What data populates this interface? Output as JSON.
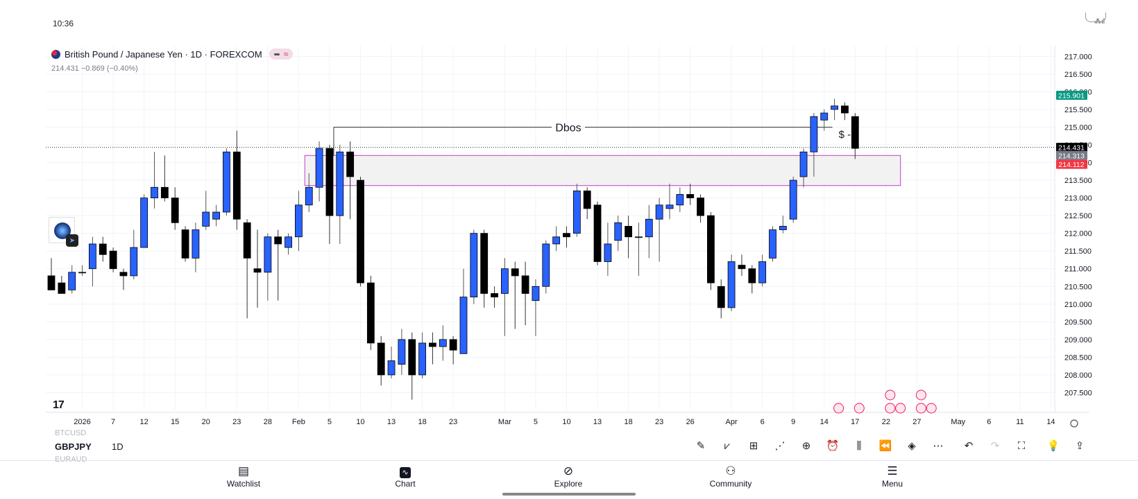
{
  "status": {
    "time": "10:36",
    "signal": "⁂ıl"
  },
  "legend": {
    "title": "British Pound / Japanese Yen · 1D · FOREXCOM",
    "price_line": "214.431  −0.869 (−0.40%)"
  },
  "colors": {
    "up_candle": "#2962ff",
    "down_candle": "#000000",
    "zone_border": "#c43ccf",
    "zone_fill": "#f2f2f2",
    "badge_green": "#089981",
    "badge_black": "#000000",
    "badge_gray": "#787b86",
    "badge_red": "#f23645"
  },
  "chart_data": {
    "type": "candlestick",
    "symbol": "GBPJPY",
    "interval": "1D",
    "ylim": [
      207.0,
      217.3
    ],
    "y_ticks": [
      "217.000",
      "216.500",
      "216.000",
      "215.500",
      "215.000",
      "214.500",
      "214.000",
      "213.500",
      "213.000",
      "212.500",
      "212.000",
      "211.500",
      "211.000",
      "210.500",
      "210.000",
      "209.500",
      "209.000",
      "208.500",
      "208.000",
      "207.500"
    ],
    "x_ticks": [
      {
        "i": 3,
        "label": "2026"
      },
      {
        "i": 6,
        "label": "7"
      },
      {
        "i": 9,
        "label": "12"
      },
      {
        "i": 12,
        "label": "15"
      },
      {
        "i": 15,
        "label": "20"
      },
      {
        "i": 18,
        "label": "23"
      },
      {
        "i": 21,
        "label": "28"
      },
      {
        "i": 24,
        "label": "Feb"
      },
      {
        "i": 27,
        "label": "5"
      },
      {
        "i": 30,
        "label": "10"
      },
      {
        "i": 33,
        "label": "13"
      },
      {
        "i": 36,
        "label": "18"
      },
      {
        "i": 39,
        "label": "23"
      },
      {
        "i": 44,
        "label": "Mar"
      },
      {
        "i": 47,
        "label": "5"
      },
      {
        "i": 50,
        "label": "10"
      },
      {
        "i": 53,
        "label": "13"
      },
      {
        "i": 56,
        "label": "18"
      },
      {
        "i": 59,
        "label": "23"
      },
      {
        "i": 62,
        "label": "26"
      },
      {
        "i": 66,
        "label": "Apr"
      },
      {
        "i": 69,
        "label": "6"
      },
      {
        "i": 72,
        "label": "9"
      },
      {
        "i": 75,
        "label": "14"
      },
      {
        "i": 78,
        "label": "17"
      },
      {
        "i": 81,
        "label": "22"
      },
      {
        "i": 84,
        "label": "27"
      },
      {
        "i": 88,
        "label": "May"
      },
      {
        "i": 91,
        "label": "6"
      },
      {
        "i": 94,
        "label": "11"
      },
      {
        "i": 97,
        "label": "14"
      }
    ],
    "candles": [
      [
        210.8,
        210.4,
        211.3,
        210.5
      ],
      [
        210.6,
        210.3,
        210.8,
        210.5
      ],
      [
        210.4,
        210.9,
        211.1,
        210.3
      ],
      [
        210.9,
        210.9,
        211.1,
        210.8
      ],
      [
        211.0,
        211.7,
        211.9,
        210.5
      ],
      [
        211.7,
        211.4,
        211.9,
        211.2
      ],
      [
        211.5,
        211.0,
        211.6,
        210.9
      ],
      [
        210.9,
        210.8,
        211.0,
        210.4
      ],
      [
        210.8,
        211.6,
        212.1,
        210.7
      ],
      [
        211.6,
        213.0,
        213.1,
        211.6
      ],
      [
        213.0,
        213.3,
        214.3,
        212.7
      ],
      [
        213.3,
        213.0,
        214.2,
        212.9
      ],
      [
        213.0,
        212.3,
        213.3,
        212.1
      ],
      [
        212.1,
        211.3,
        212.2,
        211.2
      ],
      [
        211.3,
        212.1,
        212.3,
        210.9
      ],
      [
        212.2,
        212.6,
        213.2,
        212.1
      ],
      [
        212.4,
        212.6,
        212.8,
        212.2
      ],
      [
        212.6,
        214.3,
        214.4,
        212.5
      ],
      [
        214.3,
        212.4,
        214.9,
        212.1
      ],
      [
        212.3,
        211.3,
        212.4,
        209.6
      ],
      [
        211.0,
        210.9,
        212.1,
        209.9
      ],
      [
        210.9,
        211.9,
        212.0,
        210.1
      ],
      [
        211.9,
        211.7,
        212.1,
        210.1
      ],
      [
        211.6,
        211.9,
        212.0,
        211.4
      ],
      [
        211.9,
        212.8,
        213.2,
        211.5
      ],
      [
        212.8,
        213.3,
        213.7,
        212.6
      ],
      [
        213.3,
        214.4,
        214.6,
        212.9
      ],
      [
        214.4,
        212.5,
        214.5,
        211.7
      ],
      [
        212.5,
        214.3,
        214.5,
        211.7
      ],
      [
        214.3,
        213.6,
        214.6,
        212.4
      ],
      [
        213.5,
        210.6,
        213.6,
        210.5
      ],
      [
        210.6,
        208.9,
        210.8,
        208.7
      ],
      [
        208.9,
        208.0,
        209.1,
        207.7
      ],
      [
        208.0,
        208.4,
        208.8,
        207.9
      ],
      [
        208.3,
        209.0,
        209.3,
        208.0
      ],
      [
        209.0,
        208.0,
        209.2,
        207.3
      ],
      [
        208.0,
        208.9,
        209.2,
        207.9
      ],
      [
        208.9,
        208.8,
        209.2,
        208.3
      ],
      [
        208.8,
        209.0,
        209.4,
        208.4
      ],
      [
        209.0,
        208.7,
        209.1,
        208.3
      ],
      [
        208.6,
        210.2,
        211.0,
        208.6
      ],
      [
        210.2,
        212.0,
        212.1,
        210.0
      ],
      [
        212.0,
        210.3,
        212.1,
        209.9
      ],
      [
        210.3,
        210.2,
        210.5,
        209.9
      ],
      [
        210.3,
        211.0,
        211.3,
        209.1
      ],
      [
        211.0,
        210.8,
        211.2,
        209.3
      ],
      [
        210.8,
        210.3,
        211.2,
        209.4
      ],
      [
        210.1,
        210.5,
        210.7,
        209.1
      ],
      [
        210.5,
        211.7,
        211.8,
        210.3
      ],
      [
        211.7,
        211.9,
        212.2,
        211.5
      ],
      [
        212.0,
        211.9,
        212.2,
        211.6
      ],
      [
        212.0,
        213.2,
        213.4,
        211.9
      ],
      [
        213.2,
        212.7,
        213.3,
        212.4
      ],
      [
        212.8,
        211.2,
        212.9,
        211.1
      ],
      [
        211.2,
        211.7,
        212.3,
        210.8
      ],
      [
        211.8,
        212.3,
        212.5,
        211.5
      ],
      [
        212.2,
        211.9,
        212.5,
        211.3
      ],
      [
        211.9,
        211.9,
        212.3,
        210.8
      ],
      [
        211.9,
        212.4,
        212.8,
        211.3
      ],
      [
        212.4,
        212.8,
        213.0,
        211.2
      ],
      [
        212.7,
        212.8,
        213.4,
        212.4
      ],
      [
        212.8,
        213.1,
        213.3,
        212.6
      ],
      [
        213.1,
        213.0,
        213.4,
        212.8
      ],
      [
        213.0,
        212.5,
        213.1,
        212.3
      ],
      [
        212.5,
        210.6,
        212.6,
        210.4
      ],
      [
        210.5,
        209.9,
        210.7,
        209.6
      ],
      [
        209.9,
        211.2,
        211.4,
        209.8
      ],
      [
        211.1,
        211.0,
        211.4,
        210.8
      ],
      [
        211.0,
        210.6,
        211.1,
        210.3
      ],
      [
        210.6,
        211.2,
        211.4,
        210.5
      ],
      [
        211.3,
        212.1,
        212.2,
        211.2
      ],
      [
        212.1,
        212.2,
        212.5,
        212.0
      ],
      [
        212.4,
        213.5,
        213.6,
        212.3
      ],
      [
        213.6,
        214.3,
        214.4,
        213.3
      ],
      [
        214.3,
        215.3,
        215.4,
        213.6
      ],
      [
        215.2,
        215.4,
        215.5,
        214.9
      ],
      [
        215.5,
        215.6,
        215.8,
        215.2
      ],
      [
        215.6,
        215.4,
        215.7,
        215.2
      ],
      [
        215.3,
        214.4,
        215.4,
        214.1
      ]
    ],
    "candle_colors": {
      "up": "#2962ff",
      "down": "#000000"
    },
    "annotations": {
      "zone": {
        "from_i": 25,
        "to_i": 82,
        "top": 214.2,
        "bottom": 213.35
      },
      "dbos_label": "Dbos",
      "dbos_level": 215.0,
      "dbos_from_i": 27,
      "dbos_to_i": 76,
      "dollar_marker": "$ -"
    },
    "price_badges": [
      {
        "value": "215.901",
        "color": "#089981",
        "price": 215.9
      },
      {
        "value": "214.431",
        "color": "#000000",
        "price": 214.43
      },
      {
        "value": "214.313",
        "color": "#787b86",
        "price": 214.2
      },
      {
        "value": "214.112",
        "color": "#f23645",
        "price": 213.95
      }
    ],
    "last_price": 214.431
  },
  "bottom_bar": {
    "faded_top": "BTCUSD",
    "symbol": "GBPJPY",
    "interval": "1D",
    "faded_bottom": "EURAUD"
  },
  "toolbar_icons": [
    "pencil-icon",
    "indicators-icon",
    "grid-icon",
    "trend-icon",
    "plus-circle-icon",
    "alarm-icon",
    "candles-icon",
    "rewind-icon",
    "layers-icon",
    "more-icon",
    "undo-icon",
    "redo-icon",
    "fullscreen-icon",
    "add-idea-icon",
    "share-icon"
  ],
  "nav": [
    {
      "label": "Watchlist",
      "icon": "watchlist-icon"
    },
    {
      "label": "Chart",
      "icon": "chart-icon"
    },
    {
      "label": "Explore",
      "icon": "compass-icon"
    },
    {
      "label": "Community",
      "icon": "community-icon"
    },
    {
      "label": "Menu",
      "icon": "menu-icon"
    }
  ]
}
